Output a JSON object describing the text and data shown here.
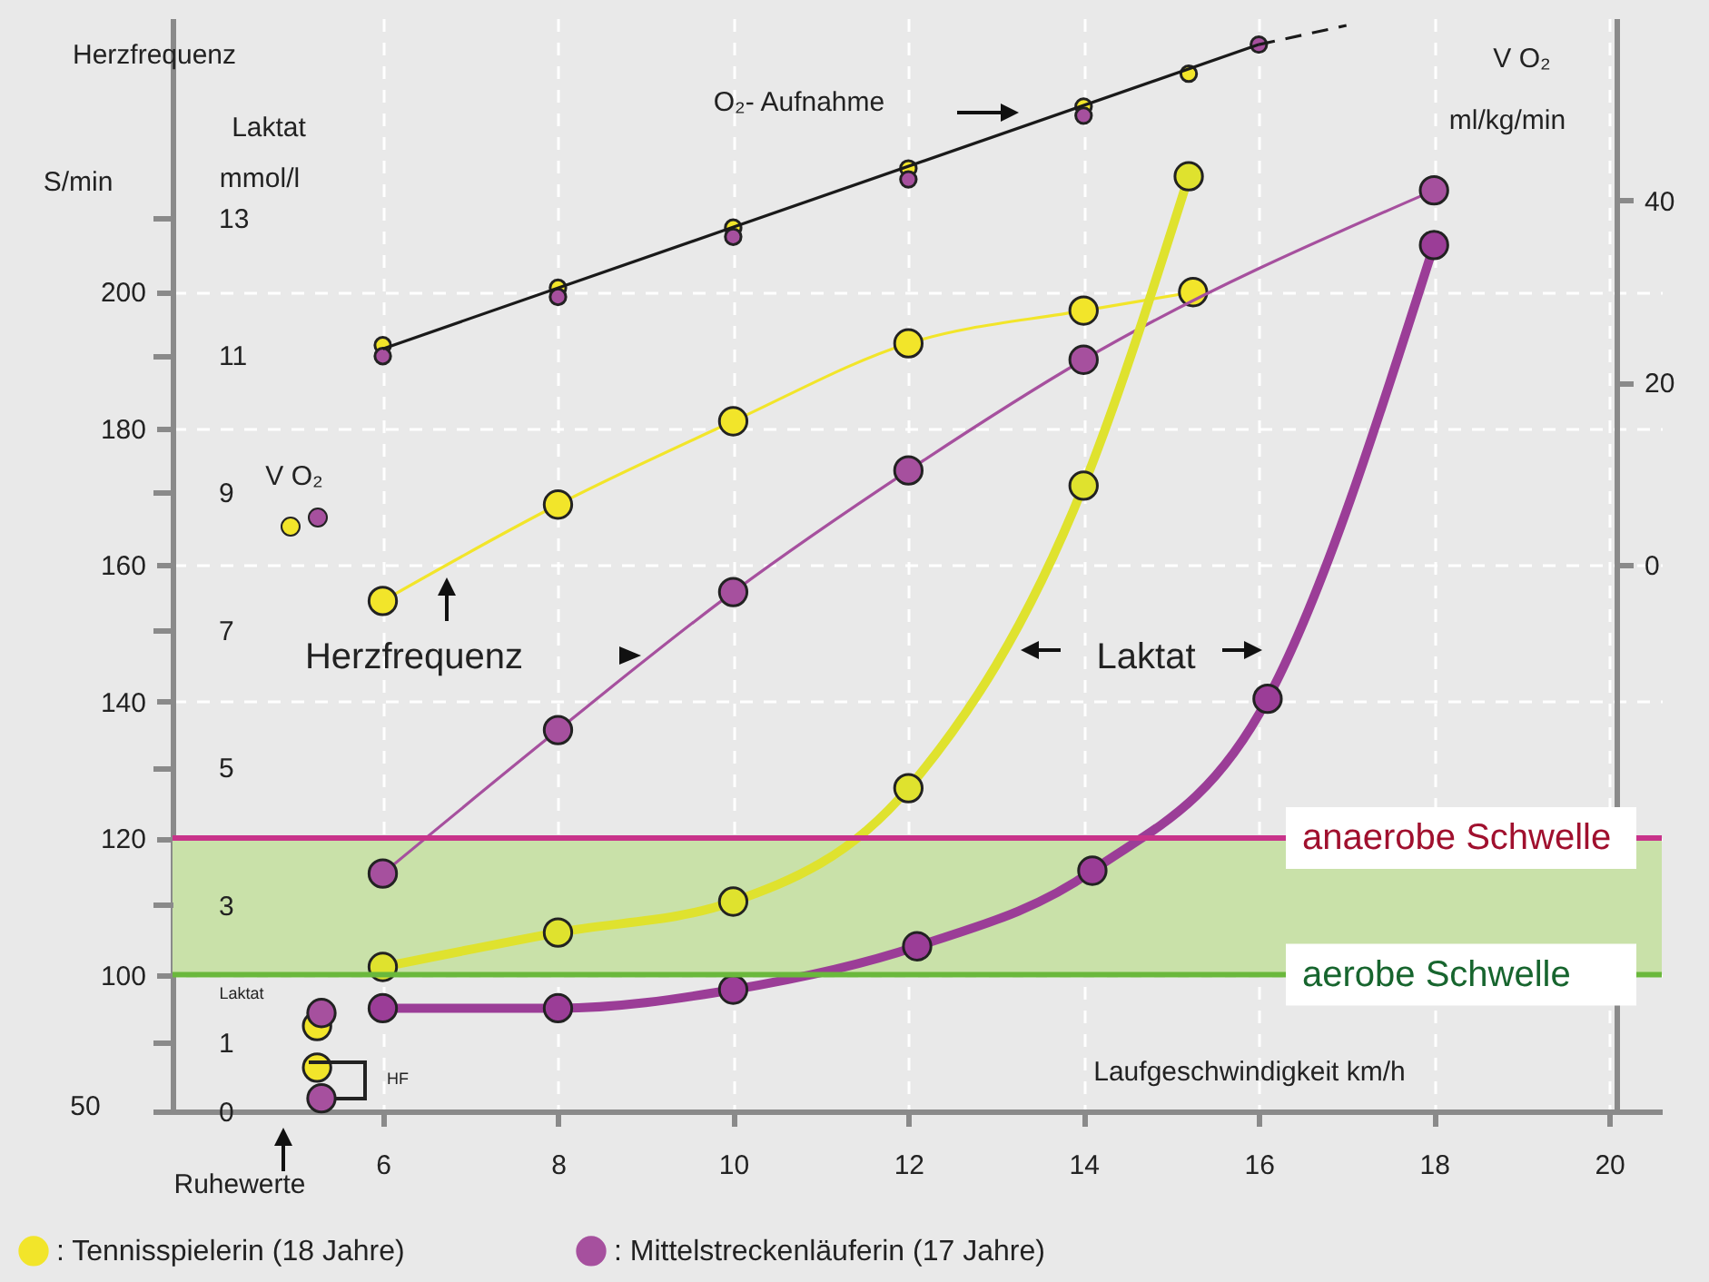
{
  "chart_data": {
    "type": "line",
    "xlabel": "Laufgeschwindigkeit  km/h",
    "ylabel": "Herzfrequenz S/min",
    "y2label": "Laktat mmol/l",
    "y3label": "V O₂ ml/kg/min",
    "xlim": [
      3.6,
      20.6
    ],
    "xticks": [
      6,
      8,
      10,
      12,
      14,
      16,
      18,
      20
    ],
    "ylim": [
      80,
      240
    ],
    "yticks": [
      100,
      120,
      140,
      160,
      180,
      200
    ],
    "y2lim": [
      0,
      15.9
    ],
    "y2ticks": [
      0,
      1,
      3,
      5,
      7,
      9,
      11,
      13
    ],
    "y3lim": [
      -60,
      60
    ],
    "y3ticks": [
      0,
      20,
      40
    ],
    "grid": true,
    "legend": "bottom",
    "marker": "circle",
    "line_style": "solid",
    "series": [
      {
        "name": ": Tennisspielerin (18 Jahre)",
        "color": "#f2e52a",
        "axis": "y",
        "x": [
          6,
          8,
          10,
          12,
          14,
          15.25
        ],
        "values": [
          154.7,
          168.8,
          181.0,
          192.4,
          197.2,
          199.9
        ]
      },
      {
        "name": ": Mittelstreckenläuferin (17 Jahre)",
        "color": "#a6509e",
        "axis": "y",
        "x": [
          6,
          8,
          10,
          12,
          14,
          18
        ],
        "values": [
          114.8,
          135.8,
          156.0,
          173.8,
          190.0,
          214.8
        ]
      },
      {
        "color": "#dfe22e",
        "axis": "y2",
        "x": [
          6,
          8,
          10,
          12,
          14,
          15.2
        ],
        "values": [
          2.1,
          2.6,
          3.05,
          4.7,
          9.1,
          13.6
        ]
      },
      {
        "color": "#9b3d97",
        "axis": "y2",
        "x": [
          6,
          8,
          10,
          12.1,
          14.1,
          16.1,
          18
        ],
        "values": [
          1.5,
          1.5,
          1.77,
          2.4,
          3.5,
          6.0,
          12.6
        ]
      },
      {
        "type": "scatter",
        "color": "#f2e52a",
        "axis": "y3",
        "x": [
          6,
          8,
          10,
          12,
          14,
          15.2
        ],
        "values": [
          24.1,
          30.4,
          37.0,
          43.5,
          50.3,
          53.9
        ]
      },
      {
        "type": "scatter",
        "color": "#a6509e",
        "axis": "y3",
        "x": [
          6,
          8,
          10,
          12,
          14,
          16
        ],
        "values": [
          22.9,
          29.4,
          36.0,
          42.3,
          49.3,
          57.1
        ]
      },
      {
        "type": "line",
        "color": "#1a1a1a",
        "axis": "y3",
        "marker": "none",
        "x": [
          6,
          16
        ],
        "values": [
          23.7,
          57.1
        ]
      },
      {
        "type": "line",
        "color": "#1a1a1a",
        "axis": "y3",
        "marker": "none",
        "line_style": "dashed",
        "x": [
          16,
          17
        ],
        "values": [
          57.1,
          59.2
        ]
      },
      {
        "type": "scatter",
        "color": "#f2e52a",
        "axis": "y2",
        "x": [
          5.25
        ],
        "values": [
          1.24
        ]
      },
      {
        "type": "scatter",
        "color": "#a6509e",
        "axis": "y2",
        "x": [
          5.3
        ],
        "values": [
          1.43
        ]
      },
      {
        "type": "scatter",
        "color": "#f2e52a",
        "axis": "y",
        "x": [
          5.25
        ],
        "values": [
          86.4
        ]
      },
      {
        "type": "scatter",
        "color": "#a6509e",
        "axis": "y",
        "x": [
          5.3
        ],
        "values": [
          81.9
        ]
      }
    ],
    "ref_lines": [
      {
        "axis": "y",
        "value": 120,
        "label": "anaerobe Schwelle",
        "color": "#c8338a"
      },
      {
        "axis": "y",
        "value": 100,
        "label": "aerobe Schwelle",
        "color": "#6ab83c"
      }
    ],
    "bands": [
      {
        "axis": "y",
        "from": 100,
        "to": 120,
        "color": "#c9e1a9"
      }
    ],
    "annotations": [
      "O₂- Aufnahme",
      "Herzfrequenz",
      "Laktat",
      "Ruhewerte",
      "Laktat",
      "HF",
      "V O₂",
      "50"
    ]
  }
}
